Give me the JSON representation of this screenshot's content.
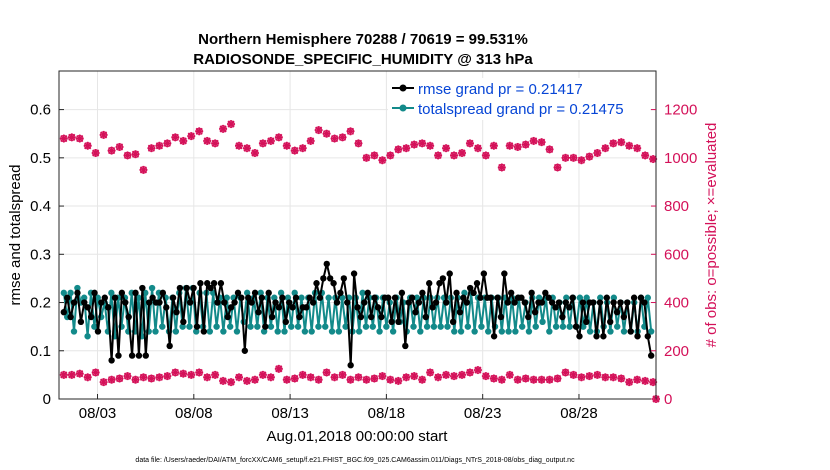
{
  "chart_data": {
    "type": "line",
    "title_line1": "Northern Hemisphere 70288 / 70619 = 99.531%",
    "title_line2": "RADIOSONDE_SPECIFIC_HUMIDITY @ 313 hPa",
    "xlabel": "Aug.01,2018 00:00:00 start",
    "ylabel_left": "rmse and totalspread",
    "ylabel_right": "# of obs: o=possible; ×=evaluated",
    "footer": "data file: /Users/raeder/DAI/ATM_forcXX/CAM6_setup/f.e21.FHIST_BGC.f09_025.CAM6assim.011/Diags_NTrS_2018-08/obs_diag_output.nc",
    "x_tick_labels": [
      "08/03",
      "08/08",
      "08/13",
      "08/18",
      "08/23",
      "08/28"
    ],
    "x_tick_days": [
      3,
      8,
      13,
      18,
      23,
      28
    ],
    "xlim": [
      1,
      32
    ],
    "y_left_ticks": [
      "0",
      "0.1",
      "0.2",
      "0.3",
      "0.4",
      "0.5",
      "0.6"
    ],
    "y_left_lim": [
      0,
      0.68
    ],
    "y_right_ticks": [
      "0",
      "200",
      "400",
      "600",
      "800",
      "1000",
      "1200"
    ],
    "y_right_lim": [
      0,
      1360
    ],
    "legend_location": "top-right",
    "colors": {
      "rmse": "#000000",
      "spread": "#138a8a",
      "obs": "#d41159",
      "legend_text": "#0645d6"
    },
    "series": [
      {
        "name": "rmse",
        "legend": "rmse grand pr = 0.21417",
        "values": [
          0.18,
          0.21,
          0.17,
          0.2,
          0.22,
          0.16,
          0.2,
          0.19,
          0.17,
          0.22,
          0.14,
          0.2,
          0.21,
          0.19,
          0.08,
          0.21,
          0.09,
          0.22,
          0.2,
          0.17,
          0.09,
          0.22,
          0.09,
          0.23,
          0.09,
          0.2,
          0.21,
          0.2,
          0.2,
          0.22,
          0.19,
          0.11,
          0.21,
          0.18,
          0.23,
          0.16,
          0.23,
          0.2,
          0.23,
          0.15,
          0.24,
          0.14,
          0.24,
          0.23,
          0.24,
          0.2,
          0.24,
          0.2,
          0.17,
          0.19,
          0.2,
          0.22,
          0.21,
          0.1,
          0.21,
          0.2,
          0.22,
          0.18,
          0.21,
          0.15,
          0.22,
          0.17,
          0.2,
          0.19,
          0.21,
          0.16,
          0.2,
          0.19,
          0.21,
          0.17,
          0.19,
          0.19,
          0.21,
          0.2,
          0.24,
          0.21,
          0.25,
          0.28,
          0.25,
          0.24,
          0.2,
          0.22,
          0.25,
          0.2,
          0.07,
          0.26,
          0.19,
          0.17,
          0.2,
          0.22,
          0.17,
          0.21,
          0.19,
          0.17,
          0.21,
          0.21,
          0.16,
          0.21,
          0.16,
          0.22,
          0.11,
          0.2,
          0.21,
          0.18,
          0.2,
          0.22,
          0.17,
          0.24,
          0.19,
          0.2,
          0.24,
          0.25,
          0.2,
          0.26,
          0.16,
          0.22,
          0.18,
          0.21,
          0.2,
          0.23,
          0.22,
          0.24,
          0.21,
          0.26,
          0.21,
          0.21,
          0.13,
          0.21,
          0.17,
          0.26,
          0.2,
          0.22,
          0.2,
          0.21,
          0.21,
          0.2,
          0.17,
          0.22,
          0.18,
          0.2,
          0.2,
          0.22,
          0.21,
          0.2,
          0.19,
          0.2,
          0.17,
          0.2,
          0.19,
          0.21,
          0.15,
          0.13,
          0.2,
          0.16,
          0.2,
          0.2,
          0.13,
          0.2,
          0.13,
          0.21,
          0.16,
          0.2,
          0.18,
          0.2,
          0.17,
          0.2,
          0.14,
          0.21,
          0.13,
          0.21,
          0.2,
          0.13,
          0.09
        ]
      },
      {
        "name": "totalspread",
        "legend": "totalspread grand pr = 0.21475",
        "values": [
          0.22,
          0.17,
          0.22,
          0.14,
          0.23,
          0.2,
          0.21,
          0.13,
          0.22,
          0.15,
          0.21,
          0.17,
          0.2,
          0.14,
          0.22,
          0.13,
          0.21,
          0.15,
          0.21,
          0.14,
          0.22,
          0.14,
          0.21,
          0.13,
          0.22,
          0.14,
          0.23,
          0.14,
          0.22,
          0.15,
          0.21,
          0.14,
          0.21,
          0.14,
          0.22,
          0.15,
          0.23,
          0.15,
          0.23,
          0.14,
          0.22,
          0.15,
          0.22,
          0.14,
          0.22,
          0.15,
          0.21,
          0.14,
          0.21,
          0.15,
          0.21,
          0.14,
          0.21,
          0.16,
          0.22,
          0.15,
          0.21,
          0.15,
          0.22,
          0.14,
          0.21,
          0.15,
          0.21,
          0.14,
          0.22,
          0.14,
          0.21,
          0.15,
          0.22,
          0.15,
          0.21,
          0.14,
          0.21,
          0.14,
          0.22,
          0.15,
          0.22,
          0.15,
          0.21,
          0.14,
          0.21,
          0.14,
          0.21,
          0.15,
          0.21,
          0.14,
          0.21,
          0.14,
          0.22,
          0.15,
          0.21,
          0.15,
          0.21,
          0.14,
          0.21,
          0.15,
          0.2,
          0.14,
          0.21,
          0.16,
          0.2,
          0.14,
          0.21,
          0.15,
          0.21,
          0.14,
          0.21,
          0.15,
          0.21,
          0.15,
          0.21,
          0.15,
          0.21,
          0.15,
          0.21,
          0.14,
          0.21,
          0.14,
          0.22,
          0.15,
          0.22,
          0.14,
          0.21,
          0.15,
          0.21,
          0.14,
          0.21,
          0.15,
          0.21,
          0.14,
          0.21,
          0.14,
          0.21,
          0.14,
          0.21,
          0.15,
          0.2,
          0.14,
          0.21,
          0.15,
          0.21,
          0.16,
          0.21,
          0.14,
          0.21,
          0.15,
          0.2,
          0.15,
          0.21,
          0.15,
          0.21,
          0.15,
          0.21,
          0.15,
          0.21,
          0.14,
          0.2,
          0.14,
          0.21,
          0.15,
          0.2,
          0.14,
          0.21,
          0.15,
          0.2,
          0.14,
          0.2,
          0.14,
          0.2,
          0.14,
          0.21,
          0.15,
          0.21,
          0.14
        ]
      }
    ],
    "obs_possible_upper": [
      1080,
      1085,
      1080,
      1050,
      1020,
      1095,
      1030,
      1045,
      1010,
      1015,
      950,
      1040,
      1050,
      1060,
      1085,
      1070,
      1090,
      1110,
      1070,
      1060,
      1120,
      1140,
      1050,
      1040,
      1020,
      1060,
      1070,
      1085,
      1050,
      1030,
      1040,
      1070,
      1115,
      1100,
      1080,
      1085,
      1110,
      1060,
      1000,
      1010,
      990,
      1010,
      1035,
      1040,
      1055,
      1060,
      1050,
      1010,
      1040,
      1010,
      1020,
      1060,
      1040,
      1010,
      1050,
      960,
      1050,
      1045,
      1055,
      1070,
      1065,
      1035,
      960,
      1000,
      1000,
      990,
      1005,
      1020,
      1040,
      1060,
      1065,
      1050,
      1040,
      1010,
      995
    ],
    "obs_possible_lower": [
      100,
      100,
      105,
      90,
      110,
      70,
      80,
      85,
      95,
      80,
      90,
      85,
      90,
      95,
      110,
      105,
      100,
      110,
      90,
      100,
      75,
      70,
      90,
      75,
      80,
      100,
      90,
      125,
      80,
      85,
      100,
      90,
      80,
      110,
      90,
      100,
      80,
      90,
      80,
      85,
      95,
      80,
      75,
      90,
      95,
      80,
      110,
      90,
      100,
      95,
      100,
      110,
      120,
      95,
      85,
      80,
      100,
      80,
      85,
      80,
      80,
      80,
      85,
      110,
      100,
      90,
      95,
      100,
      90,
      90,
      85,
      70,
      80,
      75,
      70
    ]
  }
}
